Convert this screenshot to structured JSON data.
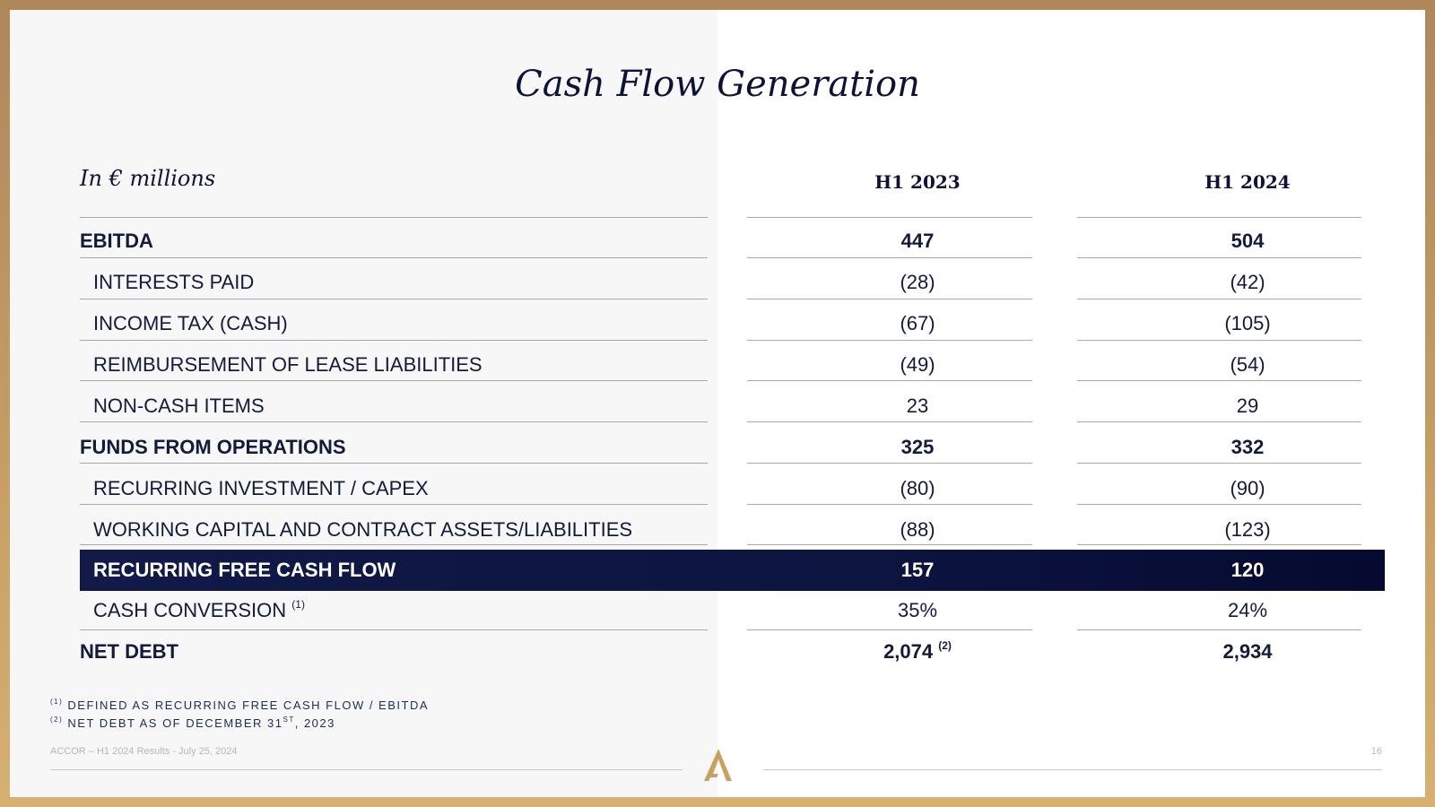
{
  "title": "Cash Flow Generation",
  "unit_label": "In € millions",
  "columns": [
    "H1 2023",
    "H1 2024"
  ],
  "rows": [
    {
      "label": "EBITDA",
      "sup": "",
      "h1_2023": "447",
      "h1_2023_sup": "",
      "h1_2024": "504"
    },
    {
      "label": "INTERESTS PAID",
      "sup": "",
      "h1_2023": "(28)",
      "h1_2023_sup": "",
      "h1_2024": "(42)"
    },
    {
      "label": "INCOME TAX (CASH)",
      "sup": "",
      "h1_2023": "(67)",
      "h1_2023_sup": "",
      "h1_2024": "(105)"
    },
    {
      "label": "REIMBURSEMENT OF LEASE LIABILITIES",
      "sup": "",
      "h1_2023": "(49)",
      "h1_2023_sup": "",
      "h1_2024": "(54)"
    },
    {
      "label": "NON-CASH ITEMS",
      "sup": "",
      "h1_2023": "23",
      "h1_2023_sup": "",
      "h1_2024": "29"
    },
    {
      "label": "FUNDS FROM OPERATIONS",
      "sup": "",
      "h1_2023": "325",
      "h1_2023_sup": "",
      "h1_2024": "332"
    },
    {
      "label": "RECURRING INVESTMENT / CAPEX",
      "sup": "",
      "h1_2023": "(80)",
      "h1_2023_sup": "",
      "h1_2024": "(90)"
    },
    {
      "label": "WORKING CAPITAL AND CONTRACT ASSETS/LIABILITIES",
      "sup": "",
      "h1_2023": "(88)",
      "h1_2023_sup": "",
      "h1_2024": "(123)"
    },
    {
      "label": "RECURRING FREE CASH FLOW",
      "sup": "",
      "h1_2023": "157",
      "h1_2023_sup": "",
      "h1_2024": "120"
    },
    {
      "label": "CASH CONVERSION",
      "sup": "(1)",
      "h1_2023": "35%",
      "h1_2023_sup": "",
      "h1_2024": "24%"
    },
    {
      "label": "NET DEBT",
      "sup": "",
      "h1_2023": "2,074",
      "h1_2023_sup": "(2)",
      "h1_2024": "2,934"
    }
  ],
  "footnotes": [
    {
      "marker": "(1)",
      "text": "DEFINED AS RECURRING FREE CASH FLOW / EBITDA",
      "text_sup": "",
      "text_after": ""
    },
    {
      "marker": "(2)",
      "text": "NET DEBT AS OF DECEMBER 31",
      "text_sup": "ST",
      "text_after": ", 2023"
    }
  ],
  "footer": {
    "left": "ACCOR – H1 2024 Results - July 25, 2024",
    "page_number": "16"
  },
  "colors": {
    "navy": "#0d1336",
    "gold_frame": "#c49a64",
    "logo_gold": "#c8a062"
  }
}
